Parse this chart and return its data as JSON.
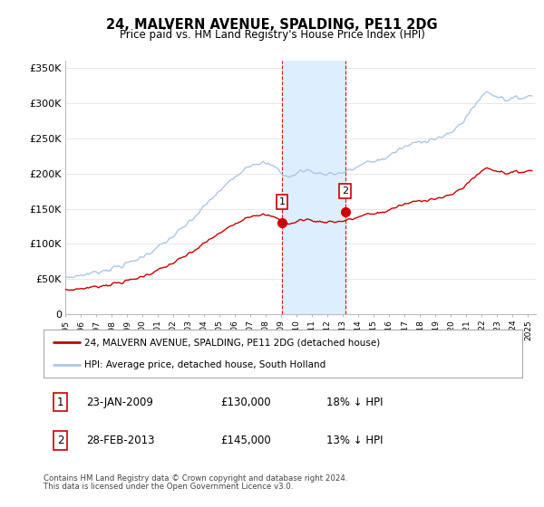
{
  "title": "24, MALVERN AVENUE, SPALDING, PE11 2DG",
  "subtitle": "Price paid vs. HM Land Registry's House Price Index (HPI)",
  "ylim": [
    0,
    360000
  ],
  "yticks": [
    0,
    50000,
    100000,
    150000,
    200000,
    250000,
    300000,
    350000
  ],
  "ytick_labels": [
    "0",
    "£50K",
    "£100K",
    "£150K",
    "£200K",
    "£250K",
    "£300K",
    "£350K"
  ],
  "hpi_color": "#aec6e8",
  "sale_color": "#cc0000",
  "shade_color": "#ddeeff",
  "sale1_price": 130000,
  "sale2_price": 145000,
  "sale1_year": 2009.05,
  "sale2_year": 2013.13,
  "legend_line1": "24, MALVERN AVENUE, SPALDING, PE11 2DG (detached house)",
  "legend_line2": "HPI: Average price, detached house, South Holland",
  "table_row1": [
    "1",
    "23-JAN-2009",
    "£130,000",
    "18% ↓ HPI"
  ],
  "table_row2": [
    "2",
    "28-FEB-2013",
    "£145,000",
    "13% ↓ HPI"
  ],
  "footnote1": "Contains HM Land Registry data © Crown copyright and database right 2024.",
  "footnote2": "This data is licensed under the Open Government Licence v3.0.",
  "bg_color": "#ffffff",
  "grid_color": "#dddddd"
}
